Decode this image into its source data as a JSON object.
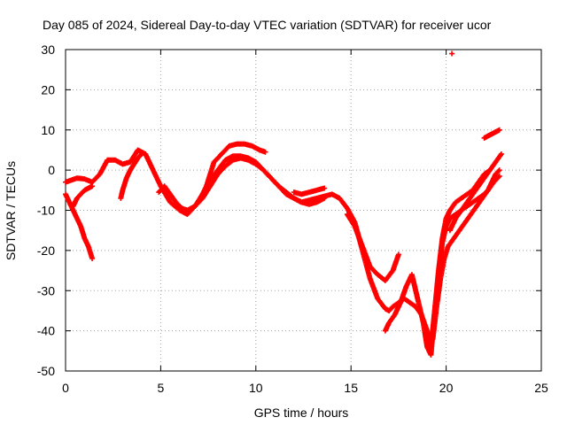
{
  "chart_data": {
    "type": "scatter",
    "title": "Day 085 of 2024, Sidereal Day-to-day VTEC variation (SDTVAR) for receiver ucor",
    "xlabel": "GPS time / hours",
    "ylabel": "SDTVAR / TECUs",
    "xlim": [
      0,
      25
    ],
    "ylim": [
      -50,
      30
    ],
    "xticks": [
      "0",
      "5",
      "10",
      "15",
      "20",
      "25"
    ],
    "yticks": [
      "30",
      "20",
      "10",
      "0",
      "-10",
      "-20",
      "-30",
      "-40",
      "-50"
    ],
    "grid": true,
    "marker": "plus",
    "series_color": "#ff0000",
    "series": [
      {
        "x": [
          0.0,
          0.3,
          0.6,
          1.0,
          1.4,
          1.8,
          2.2,
          2.6,
          3.0,
          3.4,
          3.8,
          4.2,
          4.6,
          5.0,
          5.5,
          6.0,
          6.4,
          6.8,
          7.2,
          7.6,
          8.0,
          8.4,
          8.8,
          9.2,
          9.6,
          10.0,
          10.4,
          10.8,
          11.2,
          11.6,
          12.0,
          12.4,
          12.8,
          13.2,
          13.6,
          14.0,
          14.4,
          14.8,
          15.2,
          15.6,
          16.0,
          16.4,
          16.8,
          17.0,
          17.2,
          17.5,
          17.8,
          18.1,
          18.4,
          18.7,
          19.0,
          19.2,
          19.4,
          19.6,
          19.8,
          20.0,
          20.2,
          20.5,
          20.8,
          21.1,
          21.4,
          21.7,
          22.0,
          22.2,
          22.4,
          22.6,
          22.8
        ],
        "y": [
          -3,
          -2.5,
          -2,
          -2.2,
          -3,
          -1,
          2.5,
          2.5,
          1.5,
          2,
          5,
          4,
          0,
          -4,
          -8,
          -10,
          -11,
          -9,
          -6,
          -3,
          0,
          2.5,
          3.5,
          3.5,
          3,
          2,
          0,
          -2,
          -4,
          -5.5,
          -7,
          -8,
          -7.5,
          -7,
          -6.5,
          -6,
          -7,
          -9.5,
          -13,
          -20,
          -27,
          -32,
          -34.5,
          -35,
          -34,
          -33,
          -32,
          -33,
          -34,
          -36,
          -40,
          -44,
          -35,
          -26,
          -18,
          -14,
          -12,
          -11,
          -10,
          -9,
          -8,
          -7,
          -6,
          -5,
          -3,
          -1,
          0
        ]
      },
      {
        "x": [
          7.0,
          7.4,
          7.8,
          8.2,
          8.6,
          9.0,
          9.4,
          9.8,
          10.2,
          10.5
        ],
        "y": [
          -8,
          -4,
          2,
          4,
          6,
          6.5,
          6.5,
          6,
          5,
          4.5
        ]
      },
      {
        "x": [
          0.0,
          0.2,
          0.4,
          0.6,
          0.8,
          1.0,
          1.2,
          1.4
        ],
        "y": [
          -6,
          -8,
          -10,
          -12,
          -14,
          -17,
          -19,
          -22
        ]
      },
      {
        "x": [
          0.4,
          0.6,
          0.8,
          1.0,
          1.2,
          1.4
        ],
        "y": [
          -9,
          -7,
          -6,
          -5,
          -4.5,
          -4
        ]
      },
      {
        "x": [
          2.9,
          3.0,
          3.2,
          3.4,
          3.6,
          3.8,
          4.0
        ],
        "y": [
          -7,
          -5,
          -2,
          0,
          1.5,
          3,
          4
        ]
      },
      {
        "x": [
          4.9,
          5.2,
          5.5,
          5.8,
          6.1,
          6.4,
          6.8,
          7.2,
          7.6,
          8.0,
          8.4,
          8.8,
          9.2,
          9.6,
          10.0,
          10.4,
          10.8,
          11.2,
          11.6,
          12.0,
          12.4,
          12.8,
          13.2,
          13.6
        ],
        "y": [
          -5.5,
          -4,
          -6,
          -8,
          -9.5,
          -10,
          -9,
          -7,
          -4,
          -1,
          1,
          2.5,
          3,
          2.5,
          1.5,
          0,
          -2,
          -4,
          -6,
          -7,
          -8,
          -8.5,
          -8,
          -7
        ]
      },
      {
        "x": [
          12.0,
          12.4,
          12.8,
          13.2,
          13.6
        ],
        "y": [
          -5.5,
          -6,
          -5.5,
          -5,
          -4.5
        ]
      },
      {
        "x": [
          14.8,
          15.2,
          15.6,
          16.0,
          16.4,
          16.8,
          17.2,
          17.5
        ],
        "y": [
          -11,
          -14,
          -19,
          -24,
          -26,
          -27.5,
          -25,
          -21
        ]
      },
      {
        "x": [
          16.8,
          17.0,
          17.3,
          17.6,
          17.9,
          18.2,
          18.5,
          18.8,
          19.0,
          19.2,
          19.4,
          19.6,
          19.8,
          20.0,
          20.2
        ],
        "y": [
          -40,
          -38,
          -36,
          -33,
          -29,
          -26,
          -32,
          -38,
          -44,
          -46,
          -35,
          -25,
          -17,
          -12,
          -10
        ]
      },
      {
        "x": [
          19.3,
          19.5,
          19.7,
          19.9,
          20.1,
          20.4,
          20.7,
          21.0,
          21.3,
          21.6,
          21.9,
          22.2,
          22.5,
          22.8
        ],
        "y": [
          -42,
          -34,
          -27,
          -22,
          -19,
          -17,
          -15,
          -13,
          -11,
          -9,
          -7,
          -5,
          -3,
          -1.5
        ]
      },
      {
        "x": [
          20.2,
          20.5,
          20.8,
          21.1,
          21.4,
          21.7,
          22.0,
          22.3
        ],
        "y": [
          -15,
          -12,
          -10,
          -8,
          -6,
          -4,
          -2,
          0
        ]
      },
      {
        "x": [
          20.2,
          20.5,
          20.8,
          21.1,
          21.4,
          21.7,
          22.0,
          22.3,
          22.6,
          22.9
        ],
        "y": [
          -10,
          -8,
          -7,
          -6,
          -5,
          -3,
          -1,
          0,
          2,
          4
        ]
      },
      {
        "x": [
          22.0,
          22.2,
          22.4,
          22.6,
          22.8
        ],
        "y": [
          8,
          8.5,
          9,
          9.5,
          10
        ]
      },
      {
        "x": [
          20.3
        ],
        "y": [
          29
        ]
      }
    ]
  }
}
